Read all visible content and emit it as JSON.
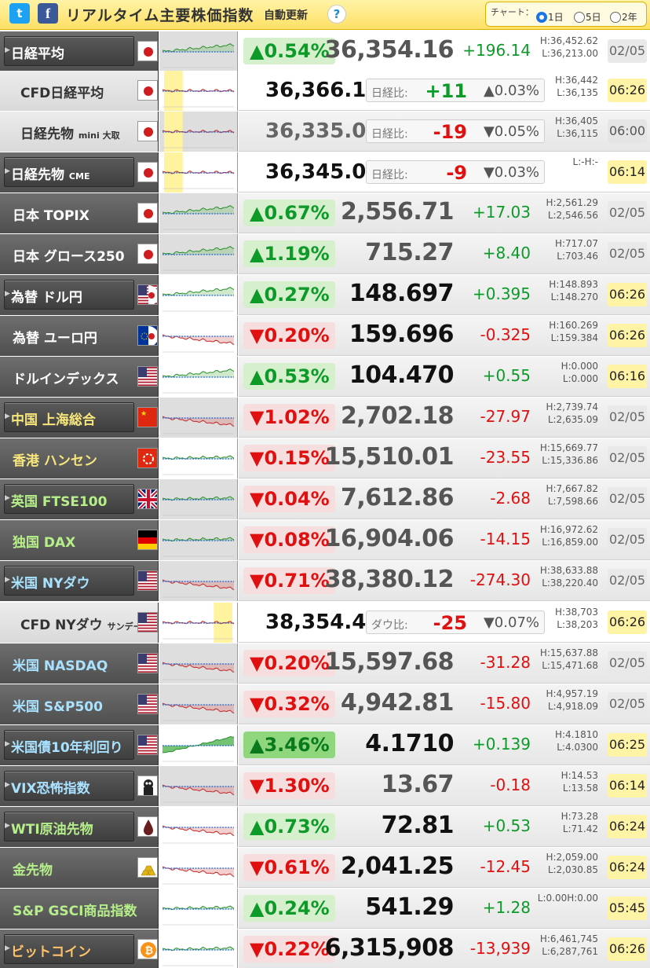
{
  "header": {
    "twitter_glyph": "t",
    "facebook_glyph": "f",
    "title": "リアルタイム主要株価指数",
    "auto_update": "自動更新",
    "help": "?",
    "chart_label": "チャート：",
    "periods": [
      "1日",
      "5日",
      "2年"
    ],
    "selected_period": "1日"
  },
  "colors": {
    "up": "#0d9a29",
    "down": "#e01010",
    "header_bg": "#ffe066",
    "highlight": "#fff3a6"
  },
  "rows": [
    {
      "name": "日経平均",
      "flag": "jp",
      "pct": "▲0.54%",
      "dir": "up",
      "price": "36,354.16",
      "change": "+196.14",
      "high": "H:36,452.62",
      "low": "L:36,213.00",
      "time": "02/05"
    },
    {
      "name": "CFD日経平均",
      "flag": "jp",
      "price": "36,366.10",
      "diff_label": "日経比:",
      "diff": "+11",
      "diff_dir": "up",
      "diff_pct": "▲0.03%",
      "high": "H:36,442",
      "low": "L:36,135",
      "time": "06:26"
    },
    {
      "name": "日経先物",
      "name_sub": "mini 大取",
      "flag": "jp",
      "price": "36,335.00",
      "diff_label": "日経比:",
      "diff": "-19",
      "diff_dir": "down",
      "diff_pct": "▼0.05%",
      "high": "H:36,405",
      "low": "L:36,115",
      "time": "06:00"
    },
    {
      "name": "日経先物",
      "name_sub": "CME",
      "flag": "jp",
      "price": "36,345.00",
      "diff_label": "日経比:",
      "diff": "-9",
      "diff_dir": "down",
      "diff_pct": "▼0.03%",
      "high": "L:-H:-",
      "low": "",
      "time": "06:14"
    },
    {
      "name": "日本 TOPIX",
      "flag": "jp",
      "pct": "▲0.67%",
      "dir": "up",
      "price": "2,556.71",
      "change": "+17.03",
      "high": "H:2,561.29",
      "low": "L:2,546.56",
      "time": "02/05"
    },
    {
      "name": "日本 グロース250",
      "flag": "jp",
      "pct": "▲1.19%",
      "dir": "up",
      "price": "715.27",
      "change": "+8.40",
      "high": "H:717.07",
      "low": "L:703.46",
      "time": "02/05"
    },
    {
      "name": "為替 ドル円",
      "flag": "usjp",
      "pct": "▲0.27%",
      "dir": "up",
      "price": "148.697",
      "change": "+0.395",
      "high": "H:148.893",
      "low": "L:148.270",
      "time": "06:26"
    },
    {
      "name": "為替 ユーロ円",
      "flag": "eujp",
      "pct": "▼0.20%",
      "dir": "down",
      "price": "159.696",
      "change": "-0.325",
      "high": "H:160.269",
      "low": "L:159.384",
      "time": "06:26"
    },
    {
      "name": "ドルインデックス",
      "flag": "us",
      "pct": "▲0.53%",
      "dir": "up",
      "price": "104.470",
      "change": "+0.55",
      "high": "H:0.000",
      "low": "L:0.000",
      "time": "06:16"
    },
    {
      "name": "中国 上海総合",
      "flag": "cn",
      "pct": "▼1.02%",
      "dir": "down",
      "price": "2,702.18",
      "change": "-27.97",
      "high": "H:2,739.74",
      "low": "L:2,635.09",
      "time": "02/05"
    },
    {
      "name": "香港 ハンセン",
      "flag": "hk",
      "pct": "▼0.15%",
      "dir": "down",
      "price": "15,510.01",
      "change": "-23.55",
      "high": "H:15,669.77",
      "low": "L:15,336.86",
      "time": "02/05"
    },
    {
      "name": "英国 FTSE100",
      "flag": "uk",
      "pct": "▼0.04%",
      "dir": "down",
      "price": "7,612.86",
      "change": "-2.68",
      "high": "H:7,667.82",
      "low": "L:7,598.66",
      "time": "02/05"
    },
    {
      "name": "独国 DAX",
      "flag": "de",
      "pct": "▼0.08%",
      "dir": "down",
      "price": "16,904.06",
      "change": "-14.15",
      "high": "H:16,972.62",
      "low": "L:16,859.00",
      "time": "02/05"
    },
    {
      "name": "米国 NYダウ",
      "flag": "us",
      "pct": "▼0.71%",
      "dir": "down",
      "price": "38,380.12",
      "change": "-274.30",
      "high": "H:38,633.88",
      "low": "L:38,220.40",
      "time": "02/05"
    },
    {
      "name": "CFD NYダウ",
      "name_sub": "サンデー",
      "flag": "us",
      "price": "38,354.40",
      "diff_label": "ダウ比:",
      "diff": "-25",
      "diff_dir": "down",
      "diff_pct": "▼0.07%",
      "high": "H:38,703",
      "low": "L:38,203",
      "time": "06:26"
    },
    {
      "name": "米国 NASDAQ",
      "flag": "us",
      "pct": "▼0.20%",
      "dir": "down",
      "price": "15,597.68",
      "change": "-31.28",
      "high": "H:15,637.88",
      "low": "L:15,471.68",
      "time": "02/05"
    },
    {
      "name": "米国 S&P500",
      "flag": "us",
      "pct": "▼0.32%",
      "dir": "down",
      "price": "4,942.81",
      "change": "-15.80",
      "high": "H:4,957.19",
      "low": "L:4,918.09",
      "time": "02/05"
    },
    {
      "name": "米国債10年利回り",
      "flag": "us",
      "pct": "▲3.46%",
      "dir": "up",
      "price": "4.1710",
      "change": "+0.139",
      "high": "H:4.1810",
      "low": "L:4.0300",
      "time": "06:25"
    },
    {
      "name": "VIX恐怖指数",
      "flag": "vix",
      "pct": "▼1.30%",
      "dir": "down",
      "price": "13.67",
      "change": "-0.18",
      "high": "H:14.53",
      "low": "L:13.58",
      "time": "06:14"
    },
    {
      "name": "WTI原油先物",
      "flag": "oil",
      "pct": "▲0.73%",
      "dir": "up",
      "price": "72.81",
      "change": "+0.53",
      "high": "H:73.28",
      "low": "L:71.42",
      "time": "06:24"
    },
    {
      "name": "金先物",
      "flag": "gold",
      "pct": "▼0.61%",
      "dir": "down",
      "price": "2,041.25",
      "change": "-12.45",
      "high": "H:2,059.00",
      "low": "L:2,030.85",
      "time": "06:24"
    },
    {
      "name": "S&P GSCI商品指数",
      "flag": "none",
      "pct": "▲0.24%",
      "dir": "up",
      "price": "541.29",
      "change": "+1.28",
      "high": "L:0.00H:0.00",
      "low": "",
      "time": "05:45"
    },
    {
      "name": "ビットコイン",
      "flag": "btc",
      "pct": "▼0.22%",
      "dir": "down",
      "price": "6,315,908",
      "change": "-13,939",
      "high": "H:6,461,745",
      "low": "L:6,287,761",
      "time": "06:26"
    }
  ]
}
